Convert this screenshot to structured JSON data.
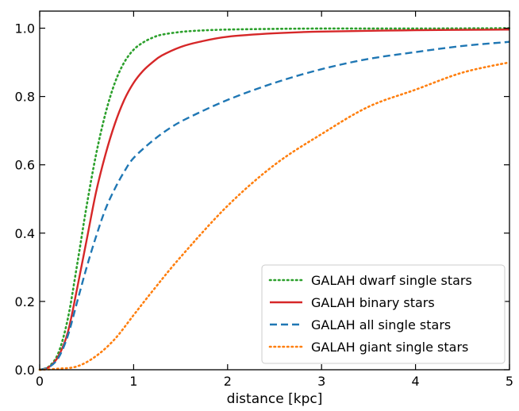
{
  "chart_data": {
    "type": "line",
    "title": "",
    "xlabel": "distance [kpc]",
    "ylabel": "",
    "xlim": [
      0,
      5
    ],
    "ylim": [
      0,
      1.05
    ],
    "xticks": [
      "0",
      "1",
      "2",
      "3",
      "4",
      "5"
    ],
    "yticks": [
      "0.0",
      "0.2",
      "0.4",
      "0.6",
      "0.8",
      "1.0"
    ],
    "grid": false,
    "legend_position": "bottom-right",
    "series": [
      {
        "name": "GALAH dwarf single stars",
        "color": "#2ca02c",
        "style": "dotted",
        "x": [
          0,
          0.1,
          0.2,
          0.3,
          0.4,
          0.5,
          0.6,
          0.7,
          0.8,
          0.9,
          1.0,
          1.1,
          1.2,
          1.3,
          1.5,
          1.7,
          2.0,
          2.5,
          3.0,
          4.0,
          5.0
        ],
        "y": [
          0.0,
          0.01,
          0.05,
          0.15,
          0.31,
          0.48,
          0.63,
          0.75,
          0.84,
          0.9,
          0.937,
          0.958,
          0.972,
          0.981,
          0.989,
          0.993,
          0.996,
          0.998,
          0.999,
          0.999,
          1.0
        ]
      },
      {
        "name": "GALAH binary stars",
        "color": "#d62728",
        "style": "solid",
        "x": [
          0,
          0.1,
          0.2,
          0.3,
          0.4,
          0.5,
          0.6,
          0.7,
          0.8,
          0.9,
          1.0,
          1.1,
          1.2,
          1.3,
          1.5,
          1.7,
          2.0,
          2.5,
          3.0,
          4.0,
          5.0
        ],
        "y": [
          0.0,
          0.008,
          0.04,
          0.11,
          0.24,
          0.38,
          0.52,
          0.63,
          0.72,
          0.79,
          0.84,
          0.875,
          0.9,
          0.92,
          0.945,
          0.96,
          0.975,
          0.985,
          0.99,
          0.994,
          0.996
        ]
      },
      {
        "name": "GALAH all single stars",
        "color": "#1f77b4",
        "style": "dashed",
        "x": [
          0,
          0.1,
          0.2,
          0.3,
          0.4,
          0.5,
          0.6,
          0.7,
          0.8,
          0.9,
          1.0,
          1.2,
          1.4,
          1.6,
          2.0,
          2.5,
          3.0,
          3.5,
          4.0,
          4.5,
          5.0
        ],
        "y": [
          0.0,
          0.008,
          0.035,
          0.1,
          0.2,
          0.3,
          0.39,
          0.47,
          0.53,
          0.58,
          0.62,
          0.67,
          0.71,
          0.74,
          0.79,
          0.84,
          0.88,
          0.91,
          0.93,
          0.948,
          0.96
        ]
      },
      {
        "name": "GALAH giant single stars",
        "color": "#ff7f0e",
        "style": "dotted",
        "x": [
          0,
          0.2,
          0.4,
          0.6,
          0.8,
          1.0,
          1.2,
          1.5,
          2.0,
          2.5,
          3.0,
          3.5,
          4.0,
          4.5,
          5.0
        ],
        "y": [
          0.0,
          0.003,
          0.01,
          0.04,
          0.09,
          0.16,
          0.23,
          0.33,
          0.48,
          0.6,
          0.69,
          0.77,
          0.82,
          0.87,
          0.9
        ]
      }
    ]
  }
}
